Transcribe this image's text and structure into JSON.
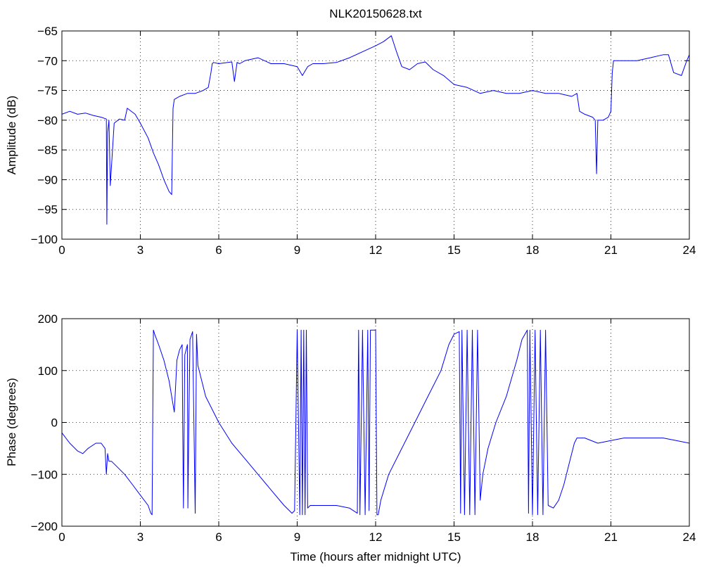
{
  "figure": {
    "background": "#ffffff",
    "line_color": "#0000ff"
  },
  "chart_data": [
    {
      "type": "line",
      "title": "NLK20150628.txt",
      "xlabel": "",
      "ylabel": "Amplitude (dB)",
      "xlim": [
        0,
        24
      ],
      "ylim": [
        -100,
        -65
      ],
      "xticks": [
        0,
        3,
        6,
        9,
        12,
        15,
        18,
        21,
        24
      ],
      "yticks": [
        -100,
        -95,
        -90,
        -85,
        -80,
        -75,
        -70,
        -65
      ],
      "grid": true,
      "series": [
        {
          "x": [
            0,
            0.3,
            0.6,
            0.9,
            1.2,
            1.5,
            1.7,
            1.72,
            1.75,
            1.8,
            1.85,
            2.0,
            2.2,
            2.4,
            2.5,
            2.8,
            3.0,
            3.3,
            3.5,
            3.7,
            3.9,
            4.1,
            4.2,
            4.25,
            4.3,
            4.5,
            4.8,
            5.1,
            5.4,
            5.6,
            5.7,
            5.75,
            5.8,
            6.0,
            6.5,
            6.6,
            6.7,
            6.8,
            7.0,
            7.5,
            8.0,
            8.5,
            9.0,
            9.2,
            9.4,
            9.6,
            10.0,
            10.5,
            11.0,
            11.5,
            12.0,
            12.3,
            12.6,
            12.8,
            13.0,
            13.3,
            13.6,
            13.9,
            14.2,
            14.6,
            15.0,
            15.5,
            16.0,
            16.5,
            17.0,
            17.5,
            18.0,
            18.5,
            19.0,
            19.5,
            19.7,
            19.8,
            20.0,
            20.3,
            20.4,
            20.45,
            20.5,
            20.7,
            20.9,
            21.0,
            21.05,
            21.1,
            21.5,
            22.0,
            22.5,
            23.0,
            23.2,
            23.4,
            23.7,
            23.9,
            24.0
          ],
          "y": [
            -79,
            -78.5,
            -79,
            -78.8,
            -79.2,
            -79.5,
            -79.8,
            -97.5,
            -82,
            -80,
            -91,
            -80.5,
            -79.8,
            -80,
            -78,
            -79,
            -80.5,
            -83,
            -85.5,
            -87.5,
            -90,
            -92,
            -92.5,
            -78,
            -76.5,
            -76,
            -75.5,
            -75.5,
            -75,
            -74.5,
            -72,
            -70.5,
            -70.3,
            -70.5,
            -70.2,
            -73.5,
            -70.3,
            -70.5,
            -70,
            -69.5,
            -70.5,
            -70.5,
            -71,
            -72.5,
            -71,
            -70.5,
            -70.5,
            -70.3,
            -69.5,
            -68.5,
            -67.5,
            -66.8,
            -65.8,
            -68.5,
            -71,
            -71.5,
            -70.5,
            -70.2,
            -71.5,
            -72.5,
            -74,
            -74.5,
            -75.5,
            -75,
            -75.5,
            -75.5,
            -75,
            -75.5,
            -75.5,
            -76,
            -75.5,
            -78.5,
            -79,
            -79.5,
            -80,
            -89,
            -80,
            -80,
            -79.5,
            -78.5,
            -72,
            -70,
            -70,
            -70,
            -69.5,
            -69,
            -69,
            -72,
            -72.5,
            -70,
            -69
          ]
        }
      ]
    },
    {
      "type": "line",
      "title": "",
      "xlabel": "Time (hours after midnight UTC)",
      "ylabel": "Phase (degrees)",
      "xlim": [
        0,
        24
      ],
      "ylim": [
        -200,
        200
      ],
      "xticks": [
        0,
        3,
        6,
        9,
        12,
        15,
        18,
        21,
        24
      ],
      "yticks": [
        -200,
        -100,
        0,
        100,
        200
      ],
      "grid": true,
      "series": [
        {
          "x": [
            0,
            0.3,
            0.6,
            0.8,
            1.0,
            1.3,
            1.5,
            1.65,
            1.7,
            1.75,
            1.8,
            1.9,
            2.1,
            2.4,
            2.7,
            3.0,
            3.3,
            3.4,
            3.45,
            3.5,
            3.55,
            3.7,
            3.9,
            4.1,
            4.3,
            4.4,
            4.5,
            4.6,
            4.62,
            4.65,
            4.7,
            4.8,
            4.82,
            4.85,
            4.9,
            5.0,
            5.1,
            5.15,
            5.2,
            5.5,
            6.0,
            6.5,
            7.0,
            7.5,
            8.0,
            8.5,
            8.8,
            8.9,
            9.0,
            9.1,
            9.15,
            9.2,
            9.25,
            9.3,
            9.35,
            9.4,
            9.5,
            10.0,
            10.5,
            11.0,
            11.3,
            11.35,
            11.4,
            11.5,
            11.6,
            11.7,
            11.75,
            11.8,
            11.9,
            12.0,
            12.05,
            12.1,
            12.2,
            12.5,
            13.0,
            13.5,
            14.0,
            14.5,
            14.8,
            15.0,
            15.2,
            15.25,
            15.3,
            15.4,
            15.5,
            15.6,
            15.7,
            15.8,
            15.9,
            16.0,
            16.1,
            16.3,
            16.6,
            17.0,
            17.4,
            17.6,
            17.8,
            17.85,
            17.9,
            18.0,
            18.1,
            18.2,
            18.3,
            18.4,
            18.5,
            18.6,
            18.8,
            19.0,
            19.2,
            19.4,
            19.6,
            19.7,
            19.8,
            20.0,
            20.5,
            21.0,
            21.5,
            22.0,
            22.5,
            23.0,
            23.5,
            24.0
          ],
          "y": [
            -20,
            -40,
            -55,
            -60,
            -50,
            -40,
            -40,
            -50,
            -100,
            -60,
            -75,
            -75,
            -85,
            -100,
            -120,
            -140,
            -160,
            -175,
            -178,
            178,
            170,
            150,
            120,
            80,
            20,
            120,
            140,
            150,
            0,
            -165,
            130,
            150,
            -165,
            -20,
            160,
            175,
            -175,
            170,
            110,
            50,
            0,
            -40,
            -70,
            -100,
            -130,
            -160,
            -175,
            -170,
            178,
            -178,
            178,
            -178,
            178,
            -178,
            178,
            -165,
            -160,
            -160,
            -160,
            -165,
            -175,
            178,
            -178,
            178,
            -178,
            178,
            -170,
            178,
            178,
            178,
            -178,
            -178,
            -150,
            -100,
            -50,
            0,
            50,
            100,
            150,
            170,
            175,
            -175,
            178,
            -178,
            178,
            -178,
            178,
            -178,
            178,
            -150,
            -100,
            -50,
            0,
            50,
            120,
            160,
            178,
            -175,
            178,
            -178,
            178,
            -178,
            178,
            -178,
            178,
            -160,
            -165,
            -150,
            -120,
            -80,
            -40,
            -30,
            -30,
            -30,
            -40,
            -35,
            -30,
            -30,
            -30,
            -30,
            -35,
            -40
          ]
        }
      ]
    }
  ]
}
